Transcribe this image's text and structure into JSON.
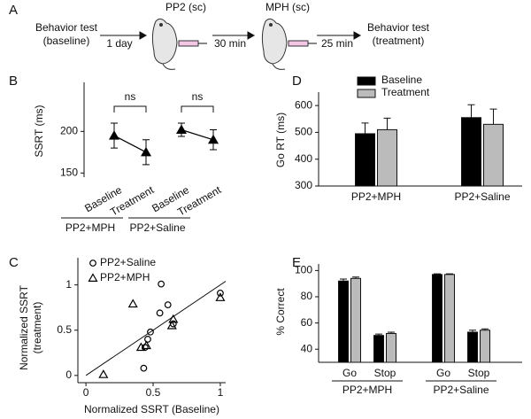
{
  "schematic": {
    "panel": "A",
    "start": [
      "Behavior test",
      "(baseline)"
    ],
    "intervals": [
      "1 day",
      "30 min",
      "25 min"
    ],
    "injections": [
      "PP2 (sc)",
      "MPH (sc)"
    ],
    "end": [
      "Behavior test",
      "(treatment)"
    ]
  },
  "chart_data": [
    {
      "panel": "B",
      "type": "line",
      "ylabel": "SSRT (ms)",
      "categories": [
        "Baseline",
        "Treatment",
        "Baseline",
        "Treatment"
      ],
      "groups": [
        "PP2+MPH",
        "PP2+Saline"
      ],
      "series": [
        {
          "color": "#000000",
          "values": [
            195,
            175,
            202,
            190
          ],
          "errors": [
            15,
            15,
            8,
            12
          ]
        }
      ],
      "annotations": [
        "ns",
        "ns"
      ],
      "ylim": [
        145,
        259
      ],
      "yticks": [
        150,
        200
      ]
    },
    {
      "panel": "D",
      "type": "bar",
      "ylabel": "Go RT (ms)",
      "categories": [
        "PP2+MPH",
        "PP2+Saline"
      ],
      "series": [
        {
          "name": "Baseline",
          "color": "#000000",
          "values": [
            495,
            555
          ],
          "errors": [
            40,
            48
          ]
        },
        {
          "name": "Treatment",
          "color": "#bbbbbb",
          "values": [
            510,
            530
          ],
          "errors": [
            43,
            57
          ]
        }
      ],
      "ylim": [
        300,
        650
      ],
      "yticks": [
        300,
        400,
        500,
        600
      ],
      "legend": "top-left"
    },
    {
      "panel": "C",
      "type": "scatter",
      "xlabel": "Normalized SSRT (Baseline)",
      "ylabel": [
        "Normalized SSRT",
        "(treatment)"
      ],
      "series": [
        {
          "name": "PP2+Saline",
          "marker": "circle",
          "color": "#000000",
          "x": [
            0.56,
            0.61,
            0.55,
            0.48,
            0.46,
            0.44,
            0.65,
            1.0,
            0.43
          ],
          "y": [
            1.01,
            0.78,
            0.69,
            0.48,
            0.4,
            0.31,
            0.57,
            0.91,
            0.08
          ]
        },
        {
          "name": "PP2+MPH",
          "marker": "triangle",
          "color": "#000000",
          "x": [
            0.35,
            0.13,
            0.41,
            0.45,
            0.65,
            0.64,
            1.0
          ],
          "y": [
            0.79,
            0.01,
            0.31,
            0.33,
            0.62,
            0.55,
            0.86
          ]
        }
      ],
      "xlim": [
        -0.06,
        1.04
      ],
      "ylim": [
        -0.08,
        1.3
      ],
      "xticks": [
        0,
        0.5,
        1
      ],
      "yticks": [
        0,
        0.5,
        1
      ],
      "identity_line": true,
      "legend": "top-left"
    },
    {
      "panel": "E",
      "type": "bar",
      "ylabel": "% Correct",
      "categories": [
        "Go",
        "Stop",
        "Go",
        "Stop"
      ],
      "groups": [
        "PP2+MPH",
        "PP2+Saline"
      ],
      "series": [
        {
          "color": "#000000",
          "values": [
            92,
            50.5,
            97,
            53
          ],
          "errors": [
            1.5,
            1,
            0.5,
            1.5
          ]
        },
        {
          "color": "#bbbbbb",
          "values": [
            94,
            52,
            97,
            54.5
          ],
          "errors": [
            1,
            1,
            0.5,
            1
          ]
        }
      ],
      "ylim": [
        30,
        105
      ],
      "yticks": [
        40,
        60,
        80,
        100
      ]
    }
  ]
}
